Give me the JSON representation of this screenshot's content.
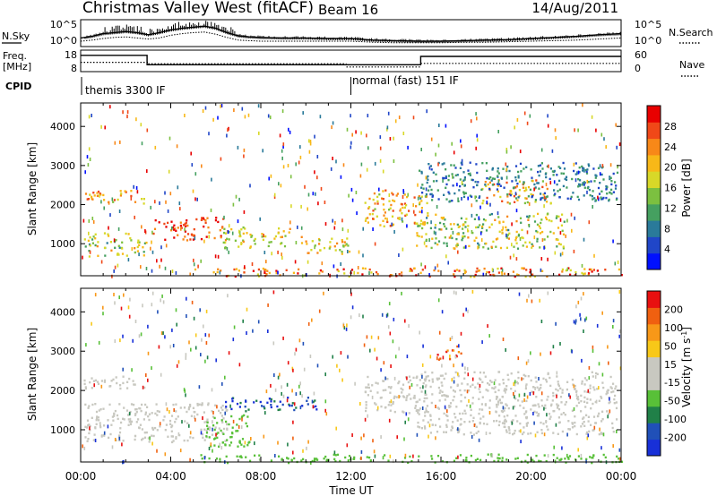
{
  "header": {
    "station": "Christmas Valley West (fitACF)",
    "beam": "Beam 16",
    "date": "14/Aug/2011"
  },
  "chart_data": [
    {
      "type": "line",
      "panel": "noise",
      "left_label": "N.Sky",
      "left_ticks": [
        "10^5",
        "10^0"
      ],
      "right_label": "N.Search",
      "right_ticks": [
        "10^5",
        "10^0"
      ],
      "x_hours": [
        0,
        0.5,
        1,
        1.5,
        2,
        2.5,
        3,
        3.5,
        4,
        4.5,
        5,
        5.5,
        6,
        6.5,
        7,
        7.5,
        8,
        9,
        10,
        11,
        12,
        13,
        14,
        15,
        16,
        17,
        18,
        19,
        20,
        21,
        22,
        23,
        24
      ],
      "series": [
        {
          "values": [
            1.6,
            1.9,
            2.4,
            2.6,
            2.8,
            2.6,
            2.2,
            2.6,
            3.1,
            3.4,
            3.6,
            3.8,
            3.4,
            2.6,
            2.0,
            1.8,
            1.7,
            1.6,
            1.6,
            1.5,
            1.5,
            1.2,
            1.1,
            1.0,
            1.0,
            1.1,
            1.2,
            1.3,
            1.5,
            1.7,
            1.9,
            2.2,
            2.4
          ]
        },
        {
          "values": [
            1.0,
            1.2,
            1.5,
            1.7,
            1.8,
            1.6,
            1.4,
            1.6,
            2.1,
            2.4,
            2.6,
            2.7,
            2.3,
            1.7,
            1.2,
            1.1,
            1.0,
            1.0,
            1.0,
            1.0,
            1.0,
            0.8,
            0.7,
            0.7,
            0.7,
            0.8,
            0.8,
            0.9,
            1.0,
            1.1,
            1.2,
            1.4,
            1.6
          ]
        }
      ]
    },
    {
      "type": "line",
      "panel": "frequency",
      "left_label": "Freq.\n[MHz]",
      "left_ticks": [
        "18",
        "8"
      ],
      "right_label": "Nave",
      "right_ticks": [
        "60",
        "0"
      ],
      "freq_steps": [
        {
          "start_hour": 0,
          "end_hour": 2.95,
          "mhz": 15.6
        },
        {
          "start_hour": 2.95,
          "end_hour": 15.1,
          "mhz": 11.2
        },
        {
          "start_hour": 15.1,
          "end_hour": 24,
          "mhz": 15.1
        }
      ],
      "nave_steps": [
        {
          "start_hour": 0,
          "end_hour": 3.0,
          "value": 26
        },
        {
          "start_hour": 3.0,
          "end_hour": 11.8,
          "value": 22
        },
        {
          "start_hour": 11.8,
          "end_hour": 15.1,
          "value": 13
        },
        {
          "start_hour": 15.1,
          "end_hour": 24,
          "value": 23
        }
      ]
    },
    {
      "type": "table",
      "panel": "cpid",
      "label": "CPID",
      "segments": [
        {
          "start_hour": 0,
          "label": "themis 3300 IF"
        },
        {
          "start_hour": 12.0,
          "label": "normal (fast) 151 IF"
        }
      ]
    },
    {
      "type": "heatmap",
      "panel": "power",
      "ylabel": "Slant Range [km]",
      "yticks": [
        1000,
        2000,
        3000,
        4000
      ],
      "ylim": [
        180,
        4600
      ],
      "xlim": [
        0,
        24
      ],
      "colorbar": {
        "label": "Power [dB]",
        "ticks": [
          "4",
          "8",
          "12",
          "16",
          "20",
          "24",
          "28"
        ],
        "range": [
          0,
          30
        ],
        "colors": [
          "#0010ff",
          "#2046c8",
          "#2a7a9a",
          "#45a060",
          "#7cc040",
          "#d8d828",
          "#f8b818",
          "#f88818",
          "#f04818",
          "#e80000"
        ]
      },
      "regions": [
        {
          "start_hour": 0.1,
          "end_hour": 2.9,
          "range_km": [
            2050,
            2380
          ],
          "power_db": [
            14,
            27
          ]
        },
        {
          "start_hour": 0.1,
          "end_hour": 2.9,
          "range_km": [
            700,
            1300
          ],
          "power_db": [
            8,
            22
          ]
        },
        {
          "start_hour": 3.2,
          "end_hour": 6.4,
          "range_km": [
            1100,
            1700
          ],
          "power_db": [
            22,
            30
          ]
        },
        {
          "start_hour": 6.3,
          "end_hour": 9.3,
          "range_km": [
            900,
            1450
          ],
          "power_db": [
            12,
            22
          ]
        },
        {
          "start_hour": 9.5,
          "end_hour": 11.9,
          "range_km": [
            750,
            1200
          ],
          "power_db": [
            12,
            24
          ]
        },
        {
          "start_hour": 12.6,
          "end_hour": 15.4,
          "range_km": [
            1450,
            2400
          ],
          "power_db": [
            14,
            26
          ]
        },
        {
          "start_hour": 14.8,
          "end_hour": 21.6,
          "range_km": [
            900,
            1800
          ],
          "power_db": [
            8,
            22
          ]
        },
        {
          "start_hour": 17.8,
          "end_hour": 21.0,
          "range_km": [
            2050,
            2650
          ],
          "power_db": [
            14,
            27
          ]
        },
        {
          "start_hour": 15.0,
          "end_hour": 23.8,
          "range_km": [
            2100,
            3100
          ],
          "power_db": [
            4,
            12
          ]
        },
        {
          "start_hour": 5.0,
          "end_hour": 24.0,
          "range_km": [
            180,
            400
          ],
          "power_db": [
            16,
            30
          ]
        }
      ]
    },
    {
      "type": "heatmap",
      "panel": "velocity",
      "ylabel": "Slant Range [km]",
      "xlabel": "Time UT",
      "yticks": [
        1000,
        2000,
        3000,
        4000
      ],
      "ylim": [
        180,
        4600
      ],
      "xlim": [
        0,
        24
      ],
      "xticks": [
        "00:00",
        "04:00",
        "08:00",
        "12:00",
        "16:00",
        "20:00",
        "00:00"
      ],
      "colorbar": {
        "label": "Velocity [m s^-1]",
        "ticks": [
          "200",
          "100",
          "50",
          "15",
          "-15",
          "-50",
          "-100",
          "-200"
        ],
        "range": [
          -250,
          250
        ],
        "colors": [
          "#1830d8",
          "#2050b8",
          "#208048",
          "#58c038",
          "#c8c8c0",
          "#c8c8c0",
          "#f8c818",
          "#f89818",
          "#f06010",
          "#e81010"
        ]
      },
      "regions": [
        {
          "start_hour": 0.1,
          "end_hour": 2.9,
          "range_km": [
            2050,
            2380
          ],
          "velocity": [
            -15,
            15
          ]
        },
        {
          "start_hour": 0.1,
          "end_hour": 6.5,
          "range_km": [
            700,
            1700
          ],
          "velocity": [
            -15,
            15
          ]
        },
        {
          "start_hour": 6.4,
          "end_hour": 10.5,
          "range_km": [
            1500,
            1850
          ],
          "velocity": [
            -250,
            -100
          ]
        },
        {
          "start_hour": 5.5,
          "end_hour": 7.6,
          "range_km": [
            600,
            1400
          ],
          "velocity": [
            -100,
            -50
          ]
        },
        {
          "start_hour": 12.6,
          "end_hour": 15.4,
          "range_km": [
            1450,
            2400
          ],
          "velocity": [
            -15,
            15
          ]
        },
        {
          "start_hour": 15.8,
          "end_hour": 17.0,
          "range_km": [
            2800,
            3150
          ],
          "velocity": [
            100,
            250
          ]
        },
        {
          "start_hour": 14.8,
          "end_hour": 23.8,
          "range_km": [
            900,
            2500
          ],
          "velocity": [
            -15,
            15
          ]
        },
        {
          "start_hour": 5.0,
          "end_hour": 24.0,
          "range_km": [
            180,
            400
          ],
          "velocity": [
            -100,
            -50
          ]
        }
      ]
    }
  ]
}
